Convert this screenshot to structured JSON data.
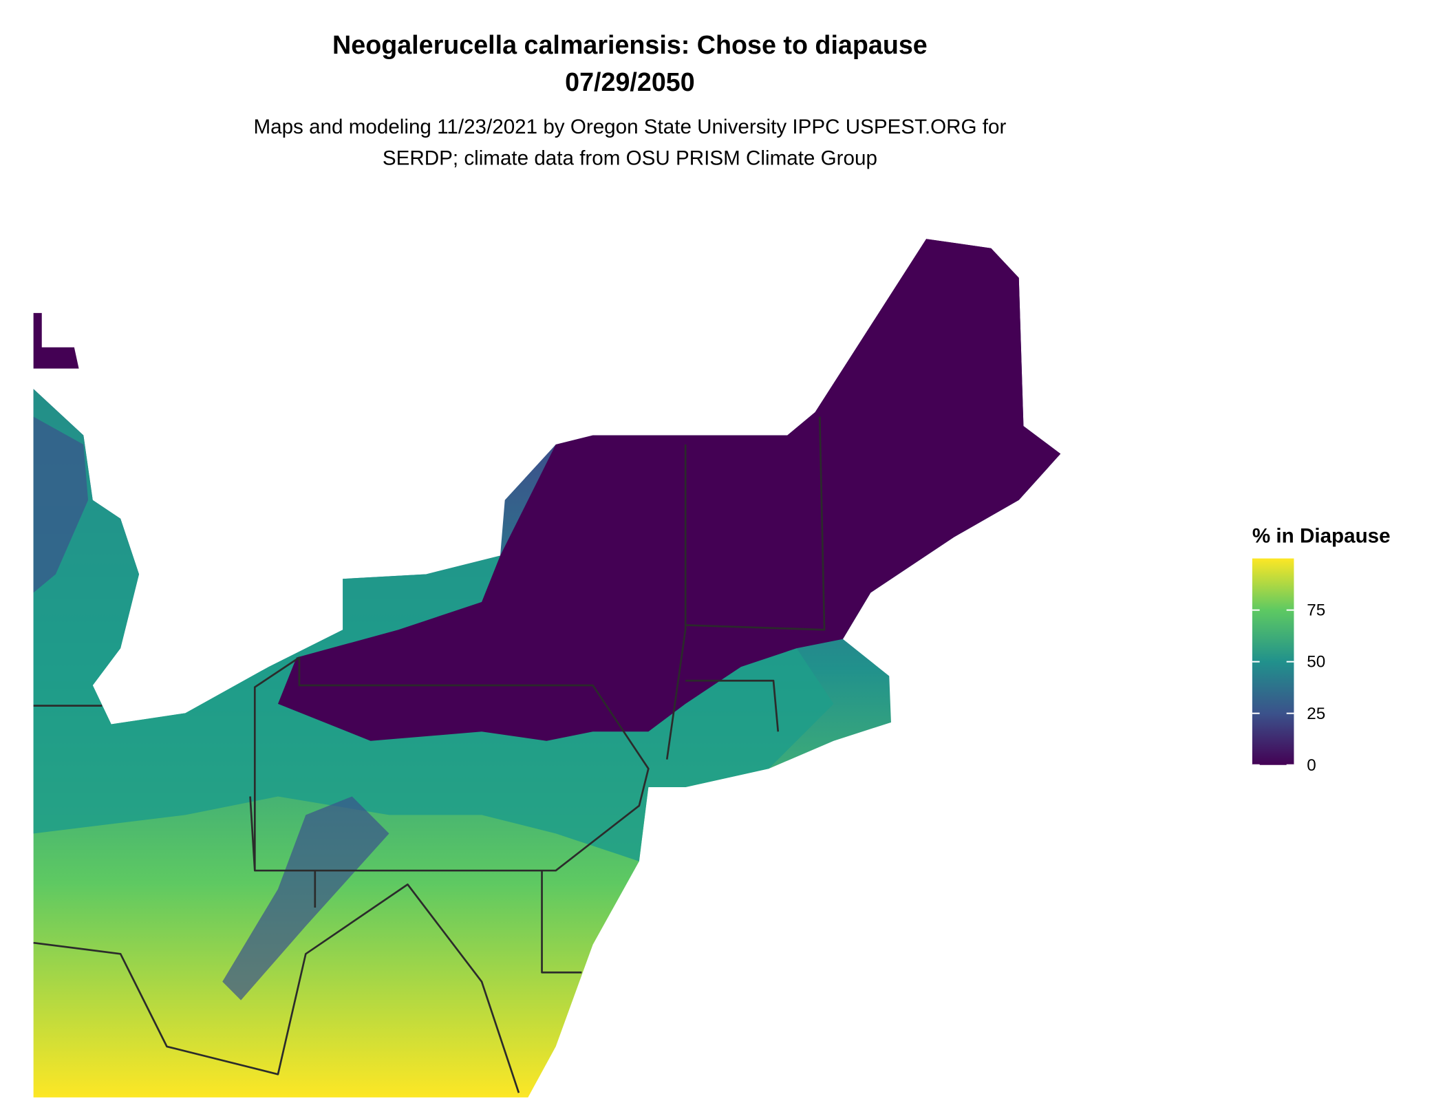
{
  "title": "Neogalerucella calmariensis: Chose to diapause",
  "date": "07/29/2050",
  "subtitle": [
    "Maps and modeling 11/23/2021 by Oregon State University IPPC USPEST.ORG for",
    "SERDP; climate data from OSU PRISM Climate Group"
  ],
  "legend": {
    "title": "% in Diapause",
    "lim": [
      0,
      100
    ],
    "ticks": [
      0,
      25,
      50,
      75
    ],
    "colors": [
      "#440154",
      "#3b528b",
      "#21918c",
      "#5ec962",
      "#fde725"
    ]
  }
}
